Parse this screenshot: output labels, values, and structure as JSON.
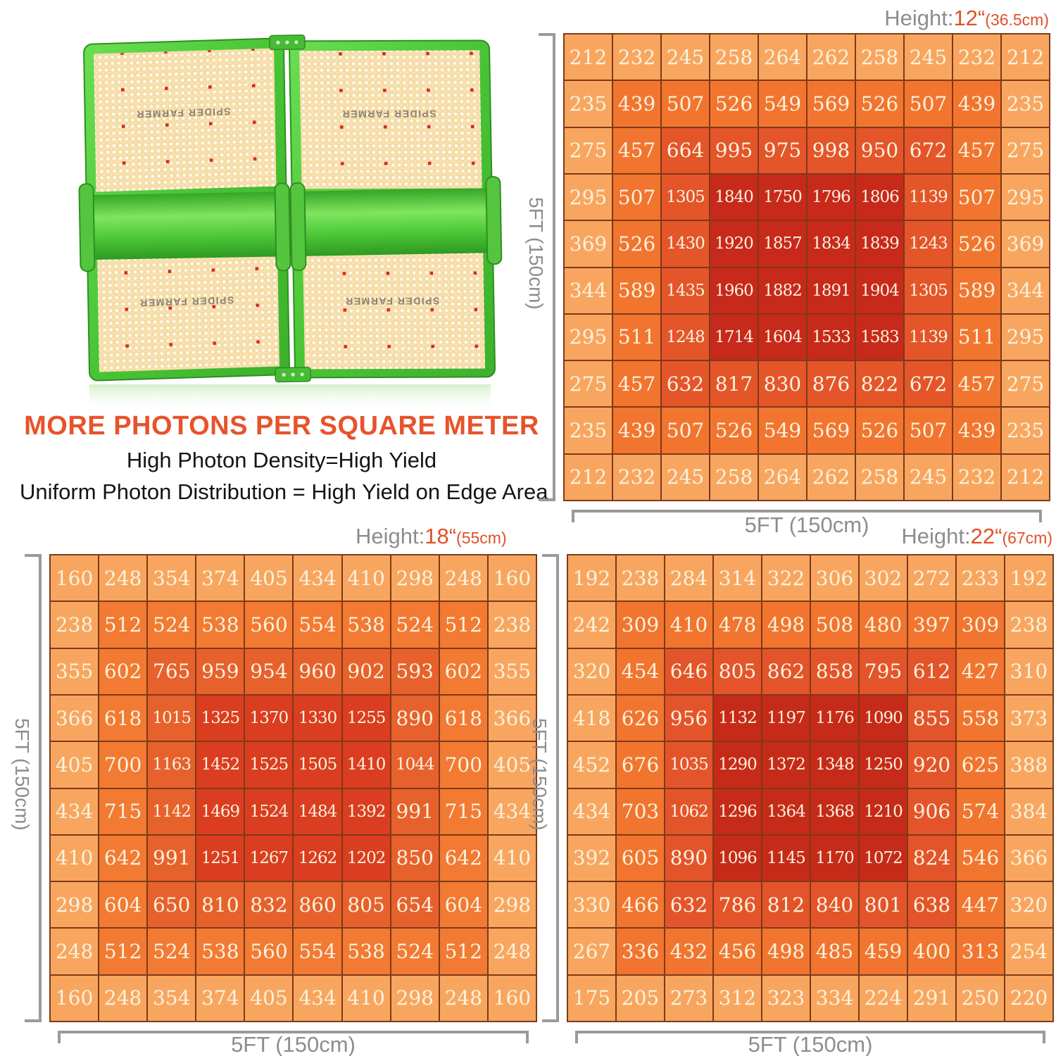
{
  "marketing": {
    "title": "MORE PHOTONS PER SQUARE METER",
    "line1": "High Photon Density=High Yield",
    "line2": "Uniform Photon Distribution = High Yield on Edge Area"
  },
  "product": {
    "brand_label": "SPIDER FARMER"
  },
  "colors": {
    "accent_orange": "#E7532B",
    "header_value_orange": "#DE5128",
    "header_gray": "#8D8D8D",
    "axis_gray": "#9A9A9A",
    "cell_text_cream": "#FBF2DE",
    "cell_border_brown": "#7D3A18",
    "frame_green": "#4FCB3B"
  },
  "chart_data": [
    {
      "type": "heatmap",
      "title_prefix": "Height:",
      "height_value": "12“",
      "height_metric": "(36.5cm)",
      "x_axis_label": "5FT (150cm)",
      "y_axis_label": "5FT (150cm)",
      "rows": 10,
      "cols": 10,
      "ring_palette": [
        "#F8A65F",
        "#F2752F",
        "#E4552A",
        "#C7291B"
      ],
      "values": [
        [
          212,
          232,
          245,
          258,
          264,
          262,
          258,
          245,
          232,
          212
        ],
        [
          235,
          439,
          507,
          526,
          549,
          569,
          526,
          507,
          439,
          235
        ],
        [
          275,
          457,
          664,
          995,
          975,
          998,
          950,
          672,
          457,
          275
        ],
        [
          295,
          507,
          1305,
          1840,
          1750,
          1796,
          1806,
          1139,
          507,
          295
        ],
        [
          369,
          526,
          1430,
          1920,
          1857,
          1834,
          1839,
          1243,
          526,
          369
        ],
        [
          344,
          589,
          1435,
          1960,
          1882,
          1891,
          1904,
          1305,
          589,
          344
        ],
        [
          295,
          511,
          1248,
          1714,
          1604,
          1533,
          1583,
          1139,
          511,
          295
        ],
        [
          275,
          457,
          632,
          817,
          830,
          876,
          822,
          672,
          457,
          275
        ],
        [
          235,
          439,
          507,
          526,
          549,
          569,
          526,
          507,
          439,
          235
        ],
        [
          212,
          232,
          245,
          258,
          264,
          262,
          258,
          245,
          232,
          212
        ]
      ]
    },
    {
      "type": "heatmap",
      "title_prefix": "Height:",
      "height_value": "18“",
      "height_metric": "(55cm)",
      "x_axis_label": "5FT (150cm)",
      "y_axis_label": "5FT (150cm)",
      "rows": 10,
      "cols": 10,
      "ring_palette": [
        "#F8A65F",
        "#F27A33",
        "#E7612C",
        "#DA3D1F"
      ],
      "values": [
        [
          160,
          248,
          354,
          374,
          405,
          434,
          410,
          298,
          248,
          160
        ],
        [
          238,
          512,
          524,
          538,
          560,
          554,
          538,
          524,
          512,
          238
        ],
        [
          355,
          602,
          765,
          959,
          954,
          960,
          902,
          593,
          602,
          355
        ],
        [
          366,
          618,
          1015,
          1325,
          1370,
          1330,
          1255,
          890,
          618,
          366
        ],
        [
          405,
          700,
          1163,
          1452,
          1525,
          1505,
          1410,
          1044,
          700,
          405
        ],
        [
          434,
          715,
          1142,
          1469,
          1524,
          1484,
          1392,
          991,
          715,
          434
        ],
        [
          410,
          642,
          991,
          1251,
          1267,
          1262,
          1202,
          850,
          642,
          410
        ],
        [
          298,
          604,
          650,
          810,
          832,
          860,
          805,
          654,
          604,
          298
        ],
        [
          248,
          512,
          524,
          538,
          560,
          554,
          538,
          524,
          512,
          248
        ],
        [
          160,
          248,
          354,
          374,
          405,
          434,
          410,
          298,
          248,
          160
        ]
      ]
    },
    {
      "type": "heatmap",
      "title_prefix": "Height:",
      "height_value": "22“",
      "height_metric": "(67cm)",
      "x_axis_label": "5FT (150cm)",
      "y_axis_label": "5FT (150cm)",
      "rows": 10,
      "cols": 10,
      "ring_palette": [
        "#F8A65F",
        "#F1752F",
        "#E4542A",
        "#C52B18"
      ],
      "values": [
        [
          192,
          238,
          284,
          314,
          322,
          306,
          302,
          272,
          233,
          192
        ],
        [
          242,
          309,
          410,
          478,
          498,
          508,
          480,
          397,
          309,
          238
        ],
        [
          320,
          454,
          646,
          805,
          862,
          858,
          795,
          612,
          427,
          310
        ],
        [
          418,
          626,
          956,
          1132,
          1197,
          1176,
          1090,
          855,
          558,
          373
        ],
        [
          452,
          676,
          1035,
          1290,
          1372,
          1348,
          1250,
          920,
          625,
          388
        ],
        [
          434,
          703,
          1062,
          1296,
          1364,
          1368,
          1210,
          906,
          574,
          384
        ],
        [
          392,
          605,
          890,
          1096,
          1145,
          1170,
          1072,
          824,
          546,
          366
        ],
        [
          330,
          466,
          632,
          786,
          812,
          840,
          801,
          638,
          447,
          320
        ],
        [
          267,
          336,
          432,
          456,
          498,
          485,
          459,
          400,
          313,
          254
        ],
        [
          175,
          205,
          273,
          312,
          323,
          334,
          224,
          291,
          250,
          220
        ]
      ]
    }
  ]
}
